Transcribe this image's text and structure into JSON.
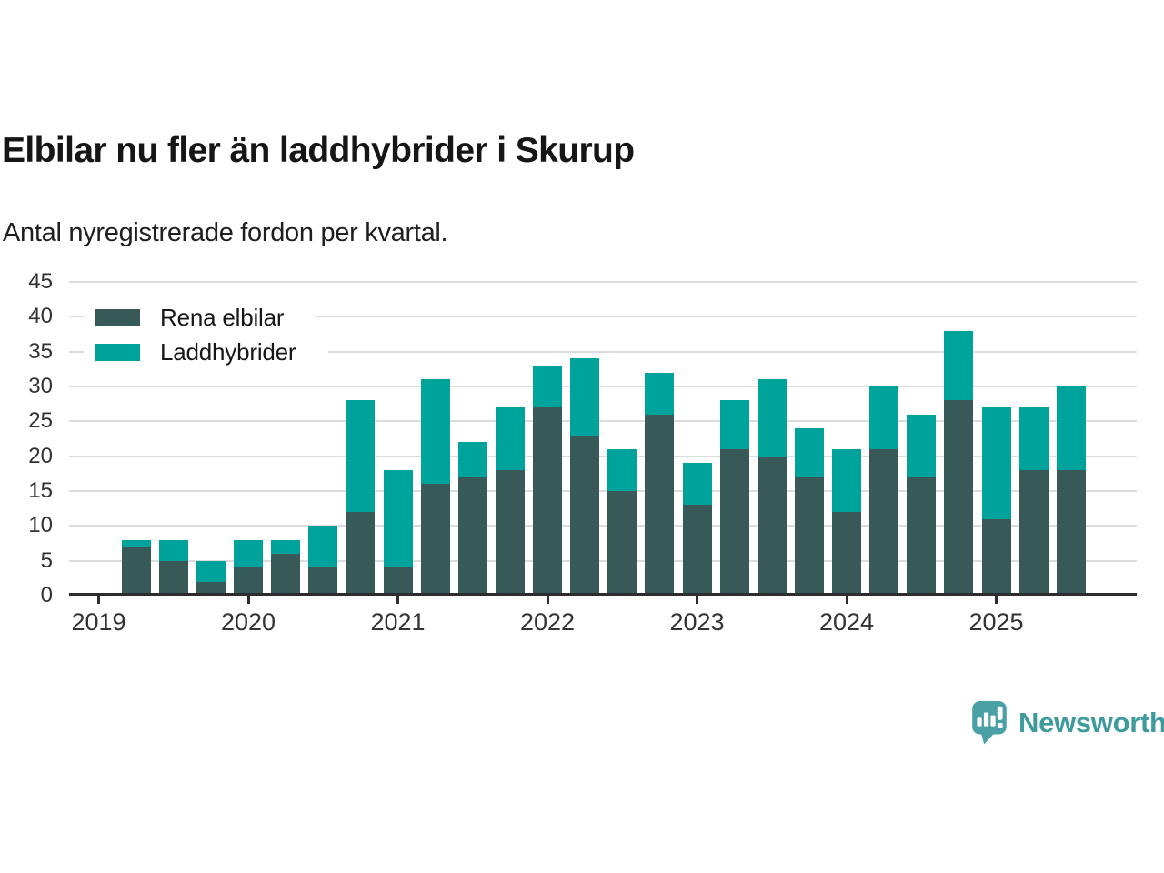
{
  "header": {
    "title": "Elbilar nu fler än laddhybrider i Skurup",
    "subtitle": "Antal nyregistrerade fordon per kvartal."
  },
  "chart_data": {
    "type": "bar",
    "stacked": true,
    "quarters": [
      "2019-Q2",
      "2019-Q3",
      "2019-Q4",
      "2020-Q1",
      "2020-Q2",
      "2020-Q3",
      "2020-Q4",
      "2021-Q1",
      "2021-Q2",
      "2021-Q3",
      "2021-Q4",
      "2022-Q1",
      "2022-Q2",
      "2022-Q3",
      "2022-Q4",
      "2023-Q1",
      "2023-Q2",
      "2023-Q3",
      "2023-Q4",
      "2024-Q1",
      "2024-Q2",
      "2024-Q3",
      "2024-Q4",
      "2025-Q1",
      "2025-Q2",
      "2025-Q3"
    ],
    "series": [
      {
        "name": "Rena elbilar",
        "color": "#375A59",
        "values": [
          7,
          5,
          2,
          4,
          6,
          4,
          12,
          4,
          16,
          17,
          18,
          27,
          23,
          15,
          26,
          13,
          21,
          20,
          17,
          12,
          21,
          17,
          28,
          11,
          18,
          18
        ]
      },
      {
        "name": "Laddhybrider",
        "color": "#00A39B",
        "values": [
          1,
          3,
          3,
          4,
          2,
          6,
          16,
          14,
          15,
          5,
          9,
          6,
          11,
          6,
          6,
          6,
          7,
          11,
          7,
          9,
          9,
          9,
          10,
          16,
          9,
          12
        ]
      }
    ],
    "ylim": [
      0,
      45
    ],
    "yticks": [
      0,
      5,
      10,
      15,
      20,
      25,
      30,
      35,
      40,
      45
    ],
    "year_labels": [
      "2019",
      "2020",
      "2021",
      "2022",
      "2023",
      "2024",
      "2025"
    ],
    "grid": true,
    "legend_position": "top-left"
  },
  "colors": {
    "series_dark": "#375A59",
    "series_teal": "#00A39B",
    "gridline": "#dcdcdc",
    "axis": "#2d2d2d",
    "tick_text": "#333333",
    "title_text": "#161616",
    "brand_text": "#3f9a9e",
    "brand_icon": "#4aa1a5"
  },
  "footer": {
    "brand": "Newsworthy"
  }
}
